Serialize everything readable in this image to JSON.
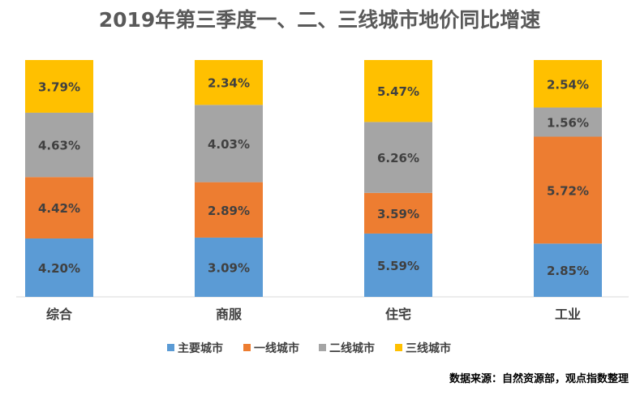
{
  "chart_data": {
    "type": "bar",
    "stacked": true,
    "title": "2019年第三季度一、二、三线城市地价同比增速",
    "categories": [
      "综合",
      "商服",
      "住宅",
      "工业"
    ],
    "series": [
      {
        "name": "主要城市",
        "color": "#5B9BD5",
        "values": [
          4.2,
          3.09,
          5.59,
          2.85
        ],
        "labels": [
          "4.20%",
          "3.09%",
          "5.59%",
          "2.85%"
        ]
      },
      {
        "name": "一线城市",
        "color": "#ED7D31",
        "values": [
          4.42,
          2.89,
          3.59,
          5.72
        ],
        "labels": [
          "4.42%",
          "2.89%",
          "3.59%",
          "5.72%"
        ]
      },
      {
        "name": "二线城市",
        "color": "#A5A5A5",
        "values": [
          4.63,
          4.03,
          6.26,
          1.56
        ],
        "labels": [
          "4.63%",
          "4.03%",
          "6.26%",
          "1.56%"
        ]
      },
      {
        "name": "三线城市",
        "color": "#FFC000",
        "values": [
          3.79,
          2.34,
          5.47,
          2.54
        ],
        "labels": [
          "3.79%",
          "2.34%",
          "5.47%",
          "2.54%"
        ]
      }
    ],
    "normalized": true,
    "grid": false,
    "legend_position": "bottom"
  },
  "source_note": "数据来源：自然资源部，观点指数整理"
}
